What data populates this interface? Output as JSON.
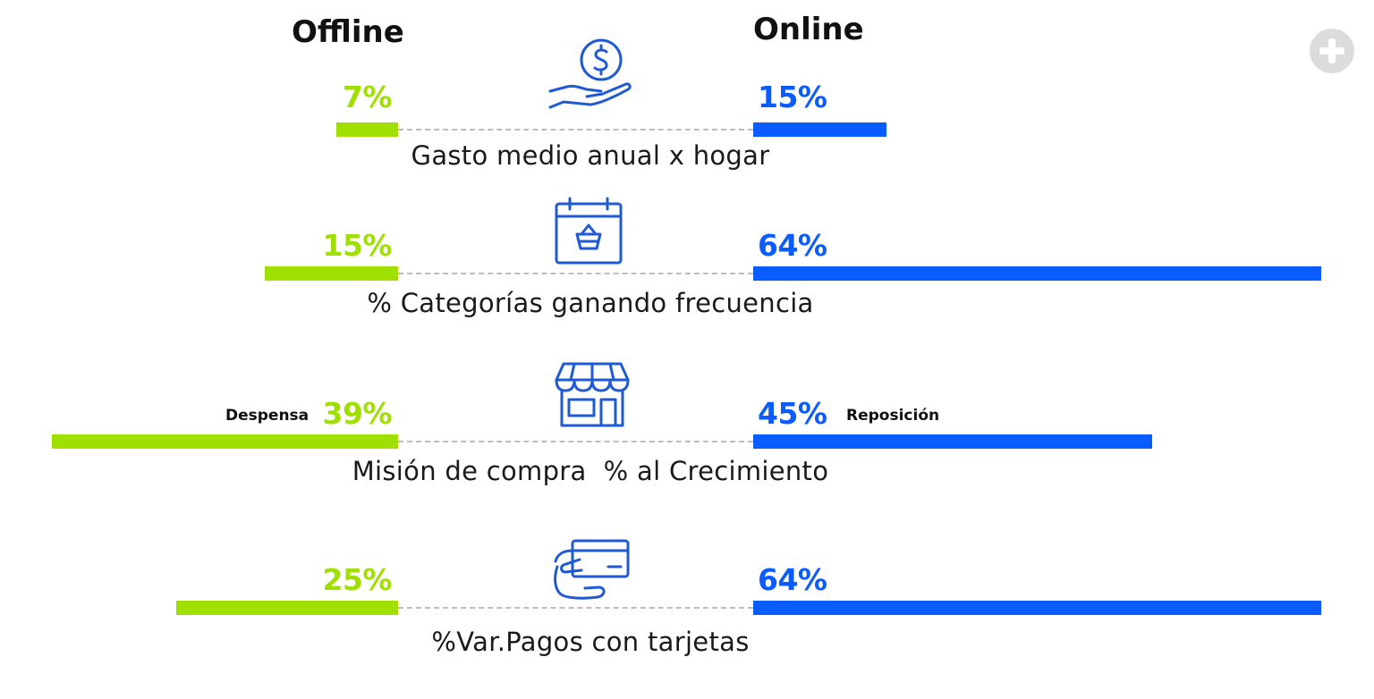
{
  "headers": {
    "offline": "Offline",
    "online": "Online"
  },
  "colors": {
    "offline": "#9fe000",
    "online": "#0a5cff",
    "icon": "#1e5ad6"
  },
  "chart_data": {
    "type": "bar",
    "categories": [
      "Gasto medio anual x hogar",
      "% Categorías ganando frecuencia",
      "Misión de compra  % al Crecimiento",
      "%Var.Pagos con tarjetas"
    ],
    "series": [
      {
        "name": "Offline",
        "values": [
          7,
          15,
          39,
          25
        ]
      },
      {
        "name": "Online",
        "values": [
          15,
          64,
          45,
          64
        ]
      }
    ],
    "labels_offline": [
      "7%",
      "15%",
      "39%",
      "25%"
    ],
    "labels_online": [
      "15%",
      "64%",
      "45%",
      "64%"
    ],
    "annotations": {
      "offline_row3": "Despensa",
      "online_row3": "Reposición"
    },
    "icons": [
      "money-hand-icon",
      "calendar-basket-icon",
      "store-icon",
      "card-payment-icon"
    ]
  }
}
